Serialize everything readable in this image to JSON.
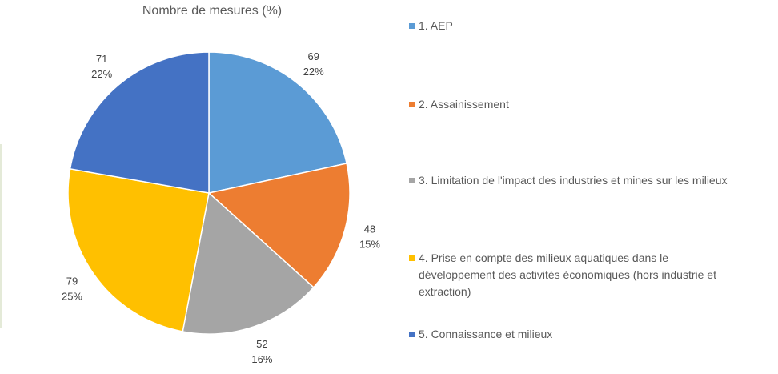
{
  "chart_data": {
    "type": "pie",
    "title": "Nombre de mesures (%)",
    "categories": [
      "1. AEP",
      "2. Assainissement",
      "3. Limitation de l'impact des industries et mines sur les milieux",
      "4. Prise en compte des milieux aquatiques dans le développement des activités économiques (hors industrie et extraction)",
      "5. Connaissance et milieux"
    ],
    "values": [
      69,
      48,
      52,
      79,
      71
    ],
    "percent_labels": [
      "22%",
      "15%",
      "16%",
      "25%",
      "22%"
    ],
    "colors": [
      "#5B9BD5",
      "#ED7D31",
      "#A5A5A5",
      "#FFC000",
      "#4472C4"
    ],
    "start": "top",
    "direction": "clockwise",
    "legend_position": "right"
  }
}
